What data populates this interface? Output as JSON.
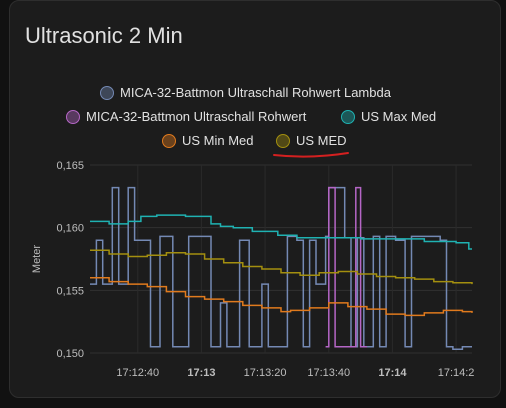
{
  "card": {
    "title": "Ultrasonic 2 Min"
  },
  "legend": [
    {
      "name": "MICA-32-Battmon Ultraschall Rohwert Lambda",
      "color": "#7489b4"
    },
    {
      "name": "MICA-32-Battmon Ultraschall Rohwert",
      "color": "#b566c6"
    },
    {
      "name": "US Max Med",
      "color": "#1fb2b2"
    },
    {
      "name": "US Min Med",
      "color": "#e07a1d"
    },
    {
      "name": "US MED",
      "color": "#a38f0f"
    }
  ],
  "annotation": {
    "underline_color": "#d42020"
  },
  "chart_data": {
    "type": "line",
    "ylabel": "Meter",
    "ylim": [
      0.15,
      0.165
    ],
    "yticks": [
      {
        "value": 0.15,
        "label": "0,150"
      },
      {
        "value": 0.155,
        "label": "0,155"
      },
      {
        "value": 0.16,
        "label": "0,160"
      },
      {
        "value": 0.165,
        "label": "0,165"
      }
    ],
    "xlim": [
      "17:12:25",
      "17:14:25"
    ],
    "xticks": [
      {
        "value": "17:12:40",
        "label": "17:12:40",
        "bold": false
      },
      {
        "value": "17:13:00",
        "label": "17:13",
        "bold": true
      },
      {
        "value": "17:13:20",
        "label": "17:13:20",
        "bold": false
      },
      {
        "value": "17:13:40",
        "label": "17:13:40",
        "bold": false
      },
      {
        "value": "17:14:00",
        "label": "17:14",
        "bold": true
      },
      {
        "value": "17:14:20",
        "label": "17:14:2",
        "bold": false
      }
    ],
    "grid": true,
    "series": [
      {
        "name": "MICA-32-Battmon Ultraschall Rohwert Lambda",
        "color": "#7489b4",
        "step": true,
        "points": [
          [
            "17:12:25",
            0.1555
          ],
          [
            "17:12:27",
            0.159
          ],
          [
            "17:12:29",
            0.1555
          ],
          [
            "17:12:32",
            0.1632
          ],
          [
            "17:12:34",
            0.1555
          ],
          [
            "17:12:37",
            0.1632
          ],
          [
            "17:12:39",
            0.159
          ],
          [
            "17:12:42",
            0.159
          ],
          [
            "17:12:44",
            0.1505
          ],
          [
            "17:12:47",
            0.1593
          ],
          [
            "17:12:51",
            0.1505
          ],
          [
            "17:12:56",
            0.1593
          ],
          [
            "17:13:00",
            0.1593
          ],
          [
            "17:13:03",
            0.1505
          ],
          [
            "17:13:06",
            0.154
          ],
          [
            "17:13:08",
            0.1505
          ],
          [
            "17:13:12",
            0.159
          ],
          [
            "17:13:15",
            0.1505
          ],
          [
            "17:13:19",
            0.1555
          ],
          [
            "17:13:21",
            0.1505
          ],
          [
            "17:13:27",
            0.1593
          ],
          [
            "17:13:30",
            0.159
          ],
          [
            "17:13:32",
            0.1505
          ],
          [
            "17:13:34",
            0.159
          ],
          [
            "17:13:36",
            0.1555
          ],
          [
            "17:13:39",
            0.1593
          ],
          [
            "17:13:40",
            0.1632
          ],
          [
            "17:13:45",
            0.1592
          ],
          [
            "17:13:47",
            0.1505
          ],
          [
            "17:13:49",
            0.1592
          ],
          [
            "17:13:51",
            0.1505
          ],
          [
            "17:13:54",
            0.1593
          ],
          [
            "17:13:56",
            0.1505
          ],
          [
            "17:13:58",
            0.1593
          ],
          [
            "17:14:01",
            0.159
          ],
          [
            "17:14:04",
            0.1505
          ],
          [
            "17:14:06",
            0.1593
          ],
          [
            "17:14:09",
            0.1593
          ],
          [
            "17:14:12",
            0.1593
          ],
          [
            "17:14:15",
            0.159
          ],
          [
            "17:14:17",
            0.1505
          ],
          [
            "17:14:19",
            0.1503
          ],
          [
            "17:14:22",
            0.1505
          ],
          [
            "17:14:25",
            0.1505
          ]
        ]
      },
      {
        "name": "MICA-32-Battmon Ultraschall Rohwert",
        "color": "#b566c6",
        "step": true,
        "points": [
          [
            "17:13:39",
            0.1505
          ],
          [
            "17:13:40",
            0.1632
          ],
          [
            "17:13:42",
            0.1505
          ],
          [
            "17:13:48",
            0.1505
          ],
          [
            "17:13:48.5",
            0.1632
          ],
          [
            "17:13:50",
            0.1505
          ],
          [
            "17:13:52",
            0.1505
          ]
        ]
      },
      {
        "name": "US Max Med",
        "color": "#1fb2b2",
        "step": true,
        "points": [
          [
            "17:12:25",
            0.1605
          ],
          [
            "17:12:31",
            0.1603
          ],
          [
            "17:12:37",
            0.1605
          ],
          [
            "17:12:41",
            0.1609
          ],
          [
            "17:12:46",
            0.161
          ],
          [
            "17:12:55",
            0.1609
          ],
          [
            "17:13:03",
            0.1603
          ],
          [
            "17:13:06",
            0.1601
          ],
          [
            "17:13:10",
            0.16
          ],
          [
            "17:13:16",
            0.1597
          ],
          [
            "17:13:24",
            0.1594
          ],
          [
            "17:13:30",
            0.1592
          ],
          [
            "17:13:40",
            0.1592
          ],
          [
            "17:13:50",
            0.1591
          ],
          [
            "17:14:00",
            0.1591
          ],
          [
            "17:14:10",
            0.1589
          ],
          [
            "17:14:20",
            0.1588
          ],
          [
            "17:14:24",
            0.1583
          ],
          [
            "17:14:25",
            0.1583
          ]
        ]
      },
      {
        "name": "US Min Med",
        "color": "#e07a1d",
        "step": true,
        "points": [
          [
            "17:12:25",
            0.156
          ],
          [
            "17:12:31",
            0.1557
          ],
          [
            "17:12:37",
            0.1555
          ],
          [
            "17:12:43",
            0.1553
          ],
          [
            "17:12:49",
            0.1549
          ],
          [
            "17:12:55",
            0.1545
          ],
          [
            "17:13:01",
            0.1543
          ],
          [
            "17:13:07",
            0.1541
          ],
          [
            "17:13:13",
            0.1538
          ],
          [
            "17:13:19",
            0.1536
          ],
          [
            "17:13:25",
            0.1533
          ],
          [
            "17:13:28",
            0.1534
          ],
          [
            "17:13:34",
            0.1536
          ],
          [
            "17:13:40",
            0.154
          ],
          [
            "17:13:46",
            0.1537
          ],
          [
            "17:13:52",
            0.1535
          ],
          [
            "17:13:58",
            0.1531
          ],
          [
            "17:14:04",
            0.153
          ],
          [
            "17:14:10",
            0.1532
          ],
          [
            "17:14:16",
            0.1534
          ],
          [
            "17:14:22",
            0.1533
          ],
          [
            "17:14:25",
            0.1532
          ]
        ]
      },
      {
        "name": "US MED",
        "color": "#a38f0f",
        "step": true,
        "points": [
          [
            "17:12:25",
            0.1582
          ],
          [
            "17:12:31",
            0.1579
          ],
          [
            "17:12:37",
            0.1577
          ],
          [
            "17:12:43",
            0.1578
          ],
          [
            "17:12:49",
            0.158
          ],
          [
            "17:12:55",
            0.1579
          ],
          [
            "17:13:01",
            0.1575
          ],
          [
            "17:13:07",
            0.1572
          ],
          [
            "17:13:13",
            0.1569
          ],
          [
            "17:13:19",
            0.1567
          ],
          [
            "17:13:25",
            0.1564
          ],
          [
            "17:13:31",
            0.1562
          ],
          [
            "17:13:37",
            0.1564
          ],
          [
            "17:13:43",
            0.1565
          ],
          [
            "17:13:49",
            0.1563
          ],
          [
            "17:13:55",
            0.1561
          ],
          [
            "17:14:01",
            0.156
          ],
          [
            "17:14:07",
            0.1559
          ],
          [
            "17:14:13",
            0.1557
          ],
          [
            "17:14:19",
            0.1556
          ],
          [
            "17:14:25",
            0.1555
          ]
        ]
      }
    ]
  }
}
